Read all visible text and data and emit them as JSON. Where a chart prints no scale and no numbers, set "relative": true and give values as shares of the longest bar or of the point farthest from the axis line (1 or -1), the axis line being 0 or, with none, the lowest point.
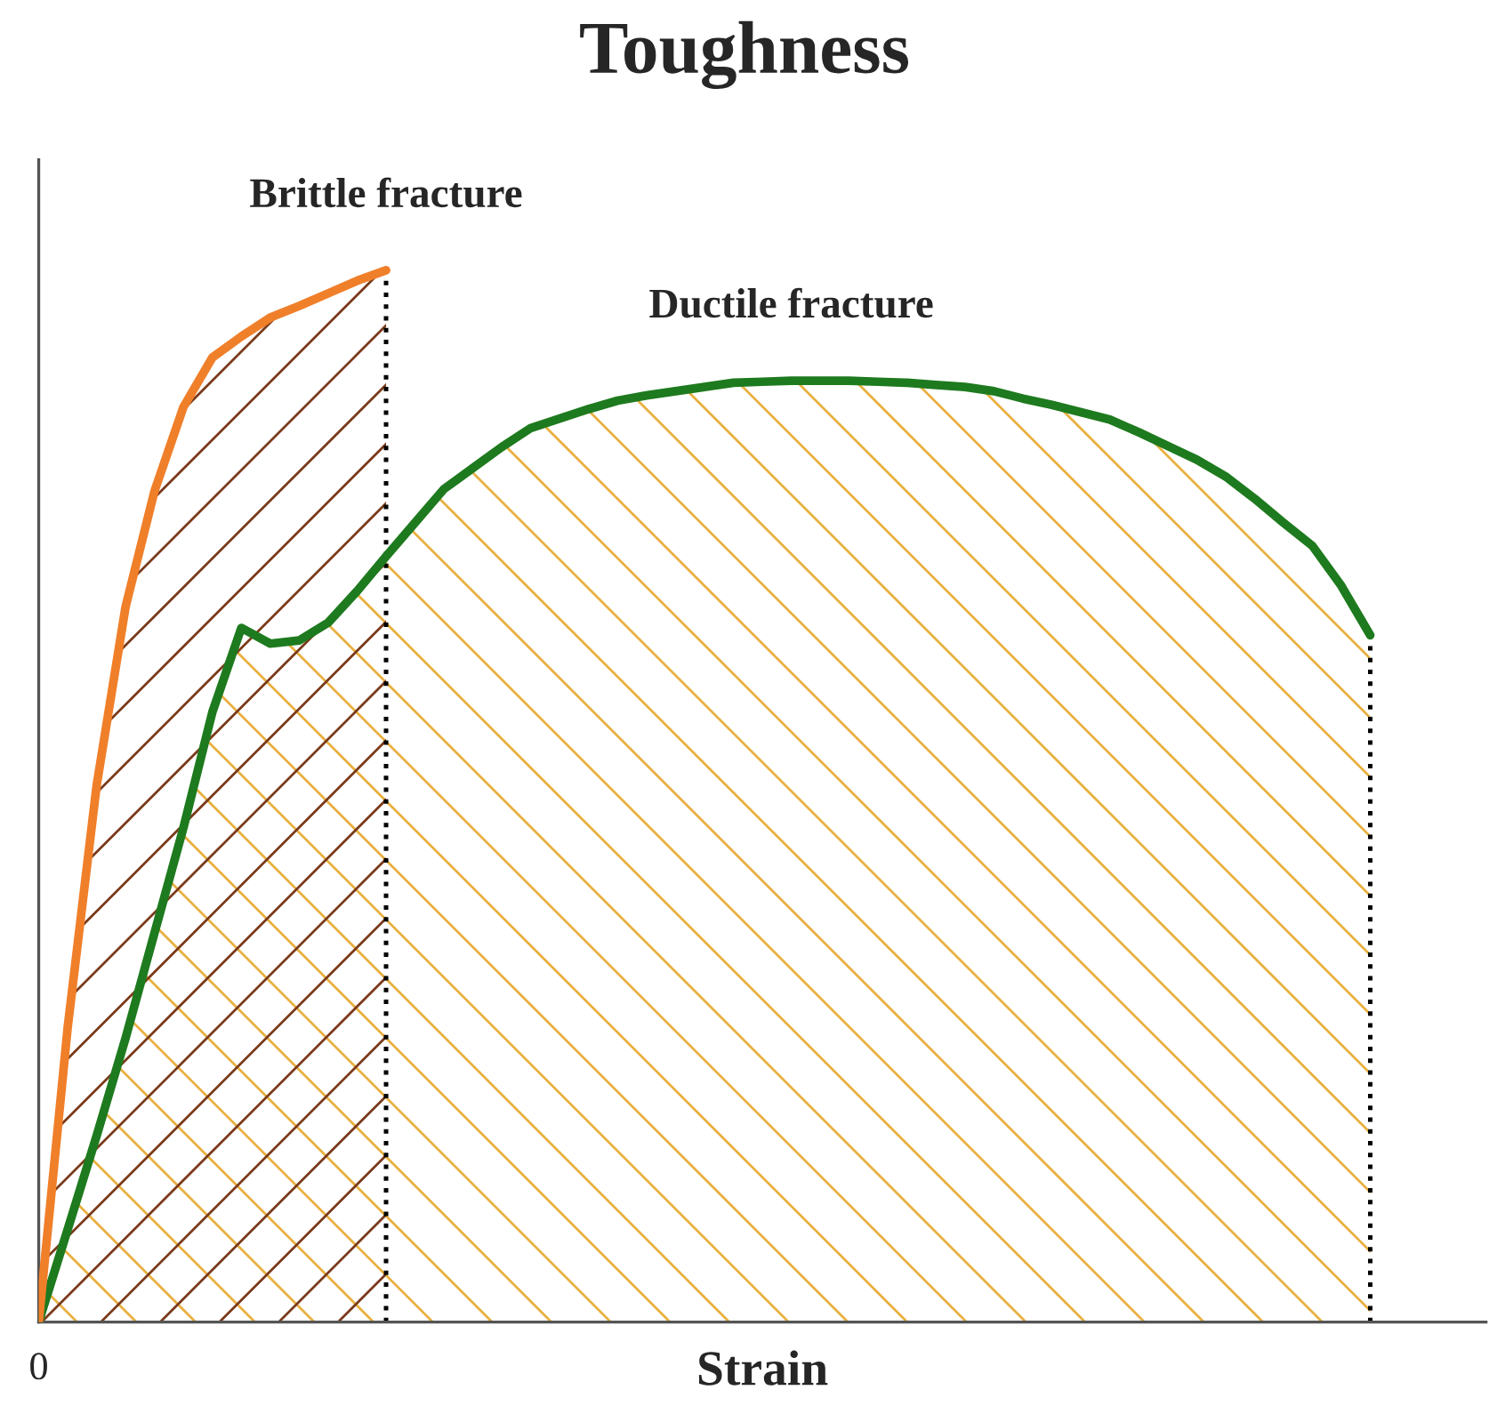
{
  "chart_data": {
    "type": "area",
    "title": "Toughness",
    "xlabel": "Strain",
    "relative": true,
    "marker": "none",
    "line_style": "solid",
    "categories": [
      null,
      null,
      null,
      null,
      null,
      null,
      null,
      null,
      null,
      null,
      null,
      null,
      null,
      null,
      null,
      null,
      null,
      null,
      null,
      null,
      null,
      null,
      null,
      null,
      null,
      null,
      null,
      null,
      null,
      null,
      null,
      null,
      null,
      null,
      null,
      null,
      null,
      null,
      null,
      null,
      null,
      null,
      null,
      null,
      null,
      null,
      null
    ],
    "series": [
      {
        "name": "Brittle fracture",
        "color": "#f07f2a",
        "values": [
          0,
          0.28,
          0.51,
          0.68,
          0.79,
          0.87,
          0.917,
          0.937,
          0.955,
          0.966,
          0.978,
          0.99,
          1,
          null,
          null,
          null,
          null,
          null,
          null,
          null,
          null,
          null,
          null,
          null,
          null,
          null,
          null,
          null,
          null,
          null,
          null,
          null,
          null,
          null,
          null,
          null,
          null,
          null,
          null,
          null,
          null,
          null,
          null,
          null,
          null,
          null,
          null
        ]
      },
      {
        "name": "Ductile fracture",
        "color": "#1e7a1e",
        "values": [
          0,
          0.088,
          0.177,
          0.27,
          0.37,
          0.47,
          0.58,
          0.66,
          0.645,
          0.648,
          0.665,
          0.695,
          0.728,
          0.76,
          0.792,
          0.812,
          0.832,
          0.85,
          0.859,
          0.868,
          0.876,
          0.881,
          0.885,
          0.889,
          0.893,
          0.894,
          0.895,
          0.895,
          0.895,
          0.894,
          0.893,
          0.891,
          0.889,
          0.885,
          0.878,
          0.872,
          0.865,
          0.858,
          0.846,
          0.833,
          0.82,
          0.804,
          0.783,
          0.76,
          0.738,
          0.7,
          0.653
        ]
      }
    ],
    "annotations": [
      "0"
    ]
  }
}
